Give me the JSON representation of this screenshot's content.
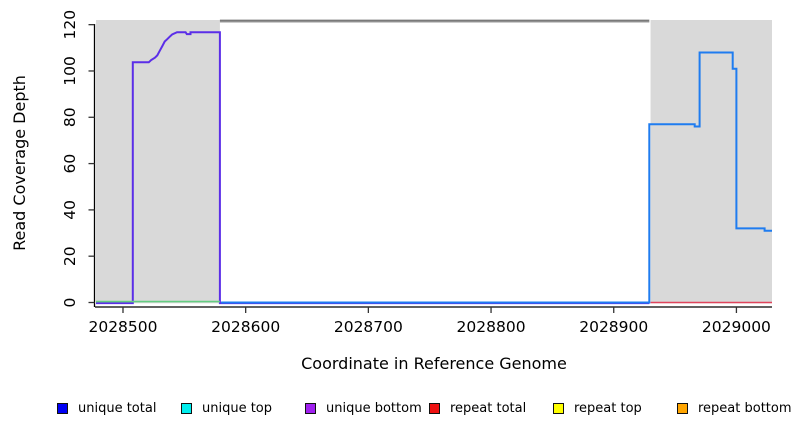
{
  "chart_data": {
    "type": "line",
    "title": "",
    "xlabel": "Coordinate in Reference Genome",
    "ylabel": "Read Coverage Depth",
    "xlim": [
      2028478,
      2029029
    ],
    "ylim": [
      0,
      121.8
    ],
    "xticks": [
      2028500,
      2028600,
      2028700,
      2028800,
      2028900,
      2029000
    ],
    "xtick_labels": [
      "2028500",
      "2028600",
      "2028700",
      "2028800",
      "2028900",
      "2029000"
    ],
    "yticks": [
      0,
      20,
      40,
      60,
      80,
      100,
      120
    ],
    "ytick_labels": [
      "0",
      "20",
      "40",
      "60",
      "80",
      "100",
      "120"
    ],
    "grid": false,
    "legend_position": "bottom",
    "shaded_regions": [
      {
        "name": "left-flank",
        "x0": 2028478,
        "x1": 2028579,
        "color": "#d9d9d9"
      },
      {
        "name": "right-flank",
        "x0": 2028930,
        "x1": 2029029,
        "color": "#d9d9d9"
      }
    ],
    "top_clip_line": {
      "y": 121.7,
      "x0": 2028579,
      "x1": 2028929,
      "color": "#7a7a7a",
      "under_color": "#c4c4c4"
    },
    "series": [
      {
        "name": "unique-bottom-peak",
        "color": "#5b2ee8",
        "width": 2,
        "dy": 0.6,
        "points": [
          [
            2028478,
            0
          ],
          [
            2028508,
            0
          ],
          [
            2028508,
            104
          ],
          [
            2028521,
            104
          ],
          [
            2028523,
            105
          ],
          [
            2028526,
            106
          ],
          [
            2028528,
            107
          ],
          [
            2028530,
            109
          ],
          [
            2028532,
            111
          ],
          [
            2028534,
            113
          ],
          [
            2028536,
            114
          ],
          [
            2028538,
            115
          ],
          [
            2028540,
            116
          ],
          [
            2028544,
            117
          ],
          [
            2028551,
            117
          ],
          [
            2028552,
            116.2
          ],
          [
            2028555,
            116.2
          ],
          [
            2028555,
            117
          ],
          [
            2028579,
            117
          ],
          [
            2028579,
            0
          ],
          [
            2028929,
            0
          ]
        ]
      },
      {
        "name": "unique-total-right",
        "color": "#1f7cf0",
        "width": 2,
        "dy": 0,
        "points": [
          [
            2028580,
            0
          ],
          [
            2028929,
            0
          ],
          [
            2028929,
            77
          ],
          [
            2028966,
            77
          ],
          [
            2028966,
            76
          ],
          [
            2028970,
            76
          ],
          [
            2028970,
            108
          ],
          [
            2028997,
            108
          ],
          [
            2028997,
            101
          ],
          [
            2029000,
            101
          ],
          [
            2029000,
            32
          ],
          [
            2029023,
            32
          ],
          [
            2029023,
            31
          ],
          [
            2029029,
            31
          ]
        ]
      },
      {
        "name": "zero-baseline-green",
        "color": "#64cc82",
        "width": 1.6,
        "dy": -0.9,
        "points": [
          [
            2028478,
            0
          ],
          [
            2028579,
            0
          ]
        ]
      },
      {
        "name": "zero-baseline-red",
        "color": "#e0445c",
        "width": 1.6,
        "dy": 0,
        "points": [
          [
            2028930,
            0
          ],
          [
            2029029,
            0
          ]
        ]
      }
    ],
    "legend": [
      {
        "label": "unique total",
        "color": "#0000f5"
      },
      {
        "label": "unique top",
        "color": "#00eded"
      },
      {
        "label": "unique bottom",
        "color": "#a020f0"
      },
      {
        "label": "repeat total",
        "color": "#ee1111"
      },
      {
        "label": "repeat top",
        "color": "#ffff00"
      },
      {
        "label": "repeat bottom",
        "color": "#ffa500"
      }
    ]
  }
}
